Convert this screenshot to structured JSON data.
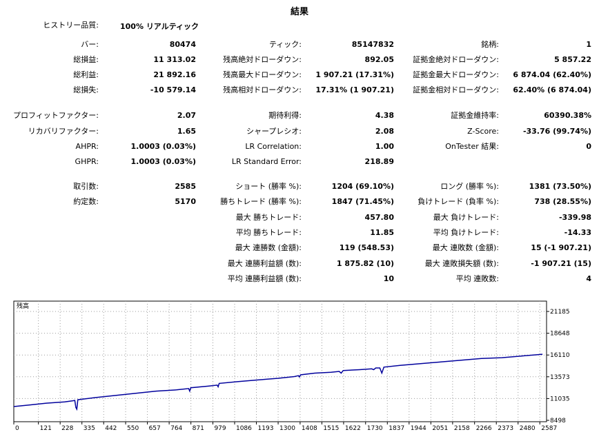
{
  "title": "結果",
  "history_quality": {
    "label": "ヒストリー品質:",
    "value": "100% リアルティック"
  },
  "col1": [
    {
      "key": "bars",
      "label": "バー:",
      "value": "80474"
    },
    {
      "key": "total_net_profit",
      "label": "総損益:",
      "value": "11 313.02"
    },
    {
      "key": "gross_profit",
      "label": "総利益:",
      "value": "21 892.16"
    },
    {
      "key": "gross_loss",
      "label": "総損失:",
      "value": "-10 579.14"
    },
    {
      "key": "profit_factor",
      "label": "プロフィットファクター:",
      "value": "2.07"
    },
    {
      "key": "recovery_factor",
      "label": "リカバリファクター:",
      "value": "1.65"
    },
    {
      "key": "ahpr",
      "label": "AHPR:",
      "value": "1.0003 (0.03%)"
    },
    {
      "key": "ghpr",
      "label": "GHPR:",
      "value": "1.0003 (0.03%)"
    },
    {
      "key": "total_trades",
      "label": "取引数:",
      "value": "2585"
    },
    {
      "key": "total_deals",
      "label": "約定数:",
      "value": "5170"
    }
  ],
  "col2": [
    {
      "key": "ticks",
      "label": "ティック:",
      "value": "85147832"
    },
    {
      "key": "balance_dd_abs",
      "label": "残高絶対ドローダウン:",
      "value": "892.05"
    },
    {
      "key": "balance_dd_max",
      "label": "残高最大ドローダウン:",
      "value": "1 907.21 (17.31%)"
    },
    {
      "key": "balance_dd_rel",
      "label": "残高相対ドローダウン:",
      "value": "17.31% (1 907.21)"
    },
    {
      "key": "expected_payoff",
      "label": "期待利得:",
      "value": "4.38"
    },
    {
      "key": "sharpe",
      "label": "シャープレシオ:",
      "value": "2.08"
    },
    {
      "key": "lr_corr",
      "label": "LR Correlation:",
      "value": "1.00"
    },
    {
      "key": "lr_err",
      "label": "LR Standard Error:",
      "value": "218.89"
    },
    {
      "key": "short",
      "label": "ショート (勝率 %):",
      "value": "1204 (69.10%)"
    },
    {
      "key": "profit_trades",
      "label": "勝ちトレード (勝率 %):",
      "value": "1847 (71.45%)"
    },
    {
      "key": "largest_profit",
      "label": "最大 勝ちトレード:",
      "value": "457.80"
    },
    {
      "key": "avg_profit",
      "label": "平均 勝ちトレード:",
      "value": "11.85"
    },
    {
      "key": "max_consec_wins",
      "label": "最大 連勝数 (金額):",
      "value": "119 (548.53)"
    },
    {
      "key": "max_consec_profit",
      "label": "最大 連勝利益額 (数):",
      "value": "1 875.82 (10)"
    },
    {
      "key": "avg_consec_wins",
      "label": "平均 連勝利益額 (数):",
      "value": "10"
    }
  ],
  "col3": [
    {
      "key": "symbols",
      "label": "銘柄:",
      "value": "1"
    },
    {
      "key": "equity_dd_abs",
      "label": "証拠金絶対ドローダウン:",
      "value": "5 857.22"
    },
    {
      "key": "equity_dd_max",
      "label": "証拠金最大ドローダウン:",
      "value": "6 874.04 (62.40%)"
    },
    {
      "key": "equity_dd_rel",
      "label": "証拠金相対ドローダウン:",
      "value": "62.40% (6 874.04)"
    },
    {
      "key": "margin_level",
      "label": "証拠金維持率:",
      "value": "60390.38%"
    },
    {
      "key": "z_score",
      "label": "Z-Score:",
      "value": "-33.76 (99.74%)"
    },
    {
      "key": "ontester",
      "label": "OnTester 結果:",
      "value": "0"
    },
    {
      "key": "long",
      "label": "ロング (勝率 %):",
      "value": "1381 (73.50%)"
    },
    {
      "key": "loss_trades",
      "label": "負けトレード (負率 %):",
      "value": "738 (28.55%)"
    },
    {
      "key": "largest_loss",
      "label": "最大 負けトレード:",
      "value": "-339.98"
    },
    {
      "key": "avg_loss",
      "label": "平均 負けトレード:",
      "value": "-14.33"
    },
    {
      "key": "max_consec_losses",
      "label": "最大 連敗数 (金額):",
      "value": "15 (-1 907.21)"
    },
    {
      "key": "max_consec_loss",
      "label": "最大 連敗損失額 (数):",
      "value": "-1 907.21 (15)"
    },
    {
      "key": "avg_consec_losses",
      "label": "平均 連敗数:",
      "value": "4"
    }
  ],
  "chart_data": {
    "type": "line",
    "title": "残高",
    "x_ticks": [
      "0",
      "121",
      "228",
      "335",
      "442",
      "550",
      "657",
      "764",
      "871",
      "979",
      "1086",
      "1193",
      "1300",
      "1408",
      "1515",
      "1622",
      "1730",
      "1837",
      "1944",
      "2051",
      "2158",
      "2266",
      "2373",
      "2480",
      "2587"
    ],
    "y_ticks": [
      "21185",
      "18648",
      "16110",
      "13573",
      "11035",
      "8498"
    ],
    "ylim": [
      8498,
      21185
    ],
    "xlim": [
      0,
      2620
    ],
    "series": [
      {
        "color": "#00009c",
        "points": [
          [
            0,
            10100
          ],
          [
            80,
            10300
          ],
          [
            160,
            10500
          ],
          [
            250,
            10650
          ],
          [
            290,
            10780
          ],
          [
            300,
            10820
          ],
          [
            305,
            10000
          ],
          [
            310,
            9800
          ],
          [
            315,
            10900
          ],
          [
            400,
            11150
          ],
          [
            500,
            11400
          ],
          [
            600,
            11650
          ],
          [
            700,
            11900
          ],
          [
            800,
            12050
          ],
          [
            860,
            12200
          ],
          [
            865,
            11900
          ],
          [
            870,
            12300
          ],
          [
            960,
            12500
          ],
          [
            1000,
            12600
          ],
          [
            1005,
            12400
          ],
          [
            1010,
            12800
          ],
          [
            1100,
            13000
          ],
          [
            1200,
            13200
          ],
          [
            1300,
            13400
          ],
          [
            1380,
            13600
          ],
          [
            1400,
            13700
          ],
          [
            1405,
            13550
          ],
          [
            1410,
            13800
          ],
          [
            1480,
            14000
          ],
          [
            1560,
            14100
          ],
          [
            1600,
            14200
          ],
          [
            1610,
            14000
          ],
          [
            1620,
            14300
          ],
          [
            1700,
            14400
          ],
          [
            1760,
            14500
          ],
          [
            1770,
            14400
          ],
          [
            1780,
            14600
          ],
          [
            1800,
            14600
          ],
          [
            1810,
            14000
          ],
          [
            1820,
            14700
          ],
          [
            1900,
            14900
          ],
          [
            2000,
            15100
          ],
          [
            2100,
            15300
          ],
          [
            2200,
            15500
          ],
          [
            2300,
            15700
          ],
          [
            2400,
            15800
          ],
          [
            2500,
            16000
          ],
          [
            2600,
            16200
          ]
        ]
      }
    ]
  }
}
